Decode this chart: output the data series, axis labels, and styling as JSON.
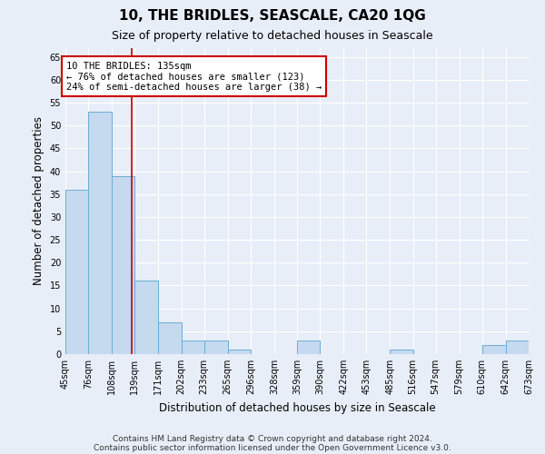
{
  "title": "10, THE BRIDLES, SEASCALE, CA20 1QG",
  "subtitle": "Size of property relative to detached houses in Seascale",
  "xlabel": "Distribution of detached houses by size in Seascale",
  "ylabel": "Number of detached properties",
  "footnote1": "Contains HM Land Registry data © Crown copyright and database right 2024.",
  "footnote2": "Contains public sector information licensed under the Open Government Licence v3.0.",
  "bin_edges": [
    45,
    76,
    108,
    139,
    171,
    202,
    233,
    265,
    296,
    328,
    359,
    390,
    422,
    453,
    485,
    516,
    547,
    579,
    610,
    642,
    673
  ],
  "bar_heights": [
    36,
    53,
    39,
    16,
    7,
    3,
    3,
    1,
    0,
    0,
    3,
    0,
    0,
    0,
    1,
    0,
    0,
    0,
    2,
    3
  ],
  "bar_color": "#c5d9ef",
  "bar_edge_color": "#6aaed6",
  "property_size": 135,
  "red_line_color": "#cc0000",
  "annotation_text": "10 THE BRIDLES: 135sqm\n← 76% of detached houses are smaller (123)\n24% of semi-detached houses are larger (38) →",
  "annotation_box_facecolor": "#ffffff",
  "annotation_box_edgecolor": "#cc0000",
  "ylim": [
    0,
    67
  ],
  "yticks": [
    0,
    5,
    10,
    15,
    20,
    25,
    30,
    35,
    40,
    45,
    50,
    55,
    60,
    65
  ],
  "background_color": "#e8eef8",
  "grid_color": "#ffffff",
  "title_fontsize": 11,
  "subtitle_fontsize": 9,
  "axis_label_fontsize": 8.5,
  "tick_fontsize": 7,
  "annotation_fontsize": 7.5,
  "footnote_fontsize": 6.5
}
